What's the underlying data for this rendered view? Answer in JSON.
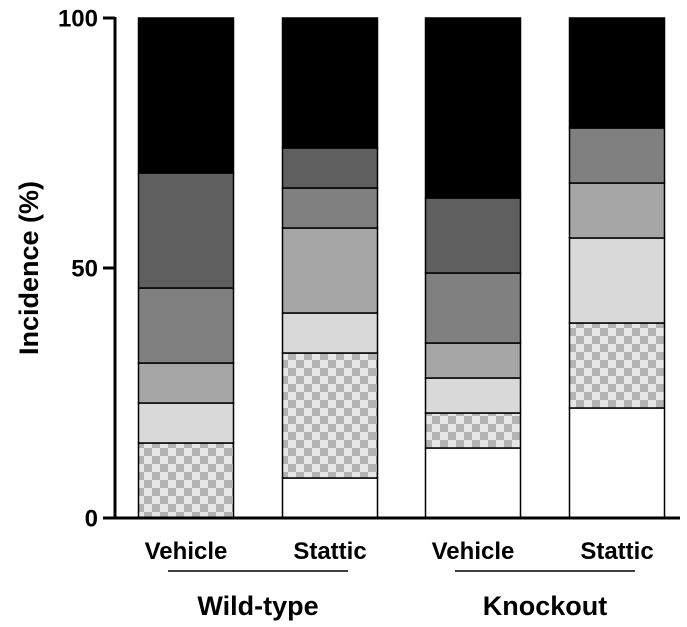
{
  "chart_data": {
    "type": "bar",
    "stacked": true,
    "ylabel": "Incidence (%)",
    "ylim": [
      0,
      100
    ],
    "yticks": [
      0,
      50,
      100
    ],
    "grid": false,
    "categories": [
      "Vehicle",
      "Stattic",
      "Vehicle",
      "Stattic"
    ],
    "groups": [
      {
        "label": "Wild-type",
        "categories": [
          0,
          1
        ]
      },
      {
        "label": "Knockout",
        "categories": [
          2,
          3
        ]
      }
    ],
    "series": [
      {
        "color": "#ffffff",
        "pattern": "none",
        "values": [
          0,
          8,
          14,
          22
        ]
      },
      {
        "color": "#c8c8c8",
        "pattern": "checker",
        "values": [
          15,
          25,
          7,
          17
        ]
      },
      {
        "color": "#d9d9d9",
        "pattern": "none",
        "values": [
          8,
          8,
          7,
          17
        ]
      },
      {
        "color": "#a6a6a6",
        "pattern": "none",
        "values": [
          8,
          17,
          7,
          11
        ]
      },
      {
        "color": "#808080",
        "pattern": "none",
        "values": [
          15,
          8,
          14,
          11
        ]
      },
      {
        "color": "#5f5f5f",
        "pattern": "none",
        "values": [
          23,
          8,
          15,
          0
        ]
      },
      {
        "color": "#000000",
        "pattern": "none",
        "values": [
          31,
          26,
          36,
          22
        ]
      }
    ]
  }
}
